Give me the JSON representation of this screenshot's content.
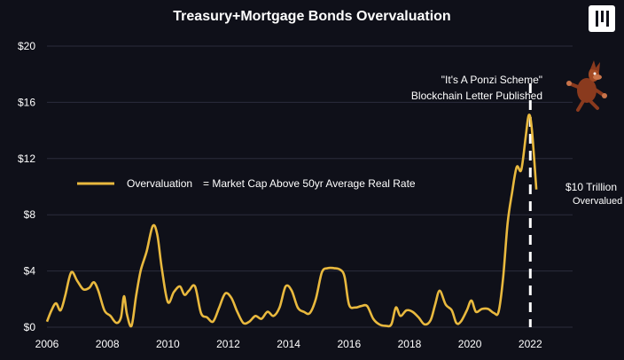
{
  "chart_data": {
    "type": "line",
    "title": "Treasury+Mortgage Bonds Overvaluation",
    "xlabel": "",
    "ylabel": "",
    "xlim": [
      2006,
      2023.4
    ],
    "ylim": [
      0,
      20
    ],
    "x_ticks": [
      "2006",
      "2008",
      "2010",
      "2012",
      "2014",
      "2016",
      "2018",
      "2020",
      "2022"
    ],
    "y_ticks": [
      "$0",
      "$4",
      "$8",
      "$12",
      "$16",
      "$20"
    ],
    "grid": "horizontal",
    "legend": "middle-left",
    "series": [
      {
        "name": "Overvaluation",
        "color": "#e9b93e",
        "points": [
          [
            2006.0,
            0.4
          ],
          [
            2006.15,
            1.2
          ],
          [
            2006.3,
            1.7
          ],
          [
            2006.45,
            1.2
          ],
          [
            2006.6,
            2.2
          ],
          [
            2006.8,
            3.9
          ],
          [
            2007.0,
            3.3
          ],
          [
            2007.2,
            2.7
          ],
          [
            2007.4,
            2.8
          ],
          [
            2007.55,
            3.2
          ],
          [
            2007.7,
            2.6
          ],
          [
            2007.9,
            1.2
          ],
          [
            2008.1,
            0.8
          ],
          [
            2008.3,
            0.3
          ],
          [
            2008.45,
            0.7
          ],
          [
            2008.55,
            2.2
          ],
          [
            2008.65,
            0.9
          ],
          [
            2008.8,
            0.1
          ],
          [
            2008.95,
            2.2
          ],
          [
            2009.1,
            4.0
          ],
          [
            2009.3,
            5.4
          ],
          [
            2009.5,
            7.2
          ],
          [
            2009.65,
            6.6
          ],
          [
            2009.8,
            4.2
          ],
          [
            2010.0,
            1.8
          ],
          [
            2010.2,
            2.5
          ],
          [
            2010.4,
            2.9
          ],
          [
            2010.55,
            2.3
          ],
          [
            2010.7,
            2.6
          ],
          [
            2010.9,
            2.9
          ],
          [
            2011.1,
            1.0
          ],
          [
            2011.3,
            0.7
          ],
          [
            2011.5,
            0.4
          ],
          [
            2011.7,
            1.4
          ],
          [
            2011.9,
            2.4
          ],
          [
            2012.1,
            2.1
          ],
          [
            2012.3,
            1.1
          ],
          [
            2012.5,
            0.3
          ],
          [
            2012.7,
            0.4
          ],
          [
            2012.9,
            0.8
          ],
          [
            2013.1,
            0.6
          ],
          [
            2013.3,
            1.1
          ],
          [
            2013.5,
            0.8
          ],
          [
            2013.7,
            1.4
          ],
          [
            2013.9,
            2.9
          ],
          [
            2014.1,
            2.6
          ],
          [
            2014.3,
            1.4
          ],
          [
            2014.5,
            1.1
          ],
          [
            2014.7,
            1.0
          ],
          [
            2014.9,
            2.0
          ],
          [
            2015.1,
            3.9
          ],
          [
            2015.3,
            4.2
          ],
          [
            2015.5,
            4.2
          ],
          [
            2015.7,
            4.1
          ],
          [
            2015.85,
            3.6
          ],
          [
            2016.0,
            1.6
          ],
          [
            2016.2,
            1.4
          ],
          [
            2016.4,
            1.5
          ],
          [
            2016.6,
            1.5
          ],
          [
            2016.8,
            0.6
          ],
          [
            2017.0,
            0.2
          ],
          [
            2017.2,
            0.1
          ],
          [
            2017.4,
            0.2
          ],
          [
            2017.55,
            1.4
          ],
          [
            2017.7,
            0.8
          ],
          [
            2017.9,
            1.2
          ],
          [
            2018.1,
            1.1
          ],
          [
            2018.3,
            0.7
          ],
          [
            2018.5,
            0.2
          ],
          [
            2018.7,
            0.5
          ],
          [
            2018.85,
            1.6
          ],
          [
            2019.0,
            2.6
          ],
          [
            2019.2,
            1.6
          ],
          [
            2019.4,
            1.2
          ],
          [
            2019.55,
            0.3
          ],
          [
            2019.7,
            0.4
          ],
          [
            2019.9,
            1.2
          ],
          [
            2020.05,
            1.9
          ],
          [
            2020.2,
            1.1
          ],
          [
            2020.4,
            1.3
          ],
          [
            2020.6,
            1.3
          ],
          [
            2020.8,
            1.0
          ],
          [
            2020.95,
            1.1
          ],
          [
            2021.1,
            3.5
          ],
          [
            2021.25,
            7.4
          ],
          [
            2021.4,
            9.6
          ],
          [
            2021.55,
            11.4
          ],
          [
            2021.7,
            11.2
          ],
          [
            2021.85,
            13.6
          ],
          [
            2021.95,
            15.1
          ],
          [
            2022.05,
            14.1
          ],
          [
            2022.2,
            9.8
          ]
        ]
      }
    ],
    "legend_text": {
      "series_label": "Overvaluation",
      "definition": "= Market Cap Above 50yr Average Real Rate"
    },
    "annotations": {
      "event_x": 2022.0,
      "event_line1": "\"It's A Ponzi Scheme\"",
      "event_line2": "Blockchain Letter Published",
      "value_line1": "$10 Trillion",
      "value_line2": "Overvalued"
    }
  },
  "colors": {
    "background": "#0f1019",
    "line": "#e9b93e",
    "grid": "#2b2c3c",
    "text": "#ffffff"
  },
  "icons": {
    "logo": "logo-icon",
    "mascot": "coyote-icon"
  }
}
